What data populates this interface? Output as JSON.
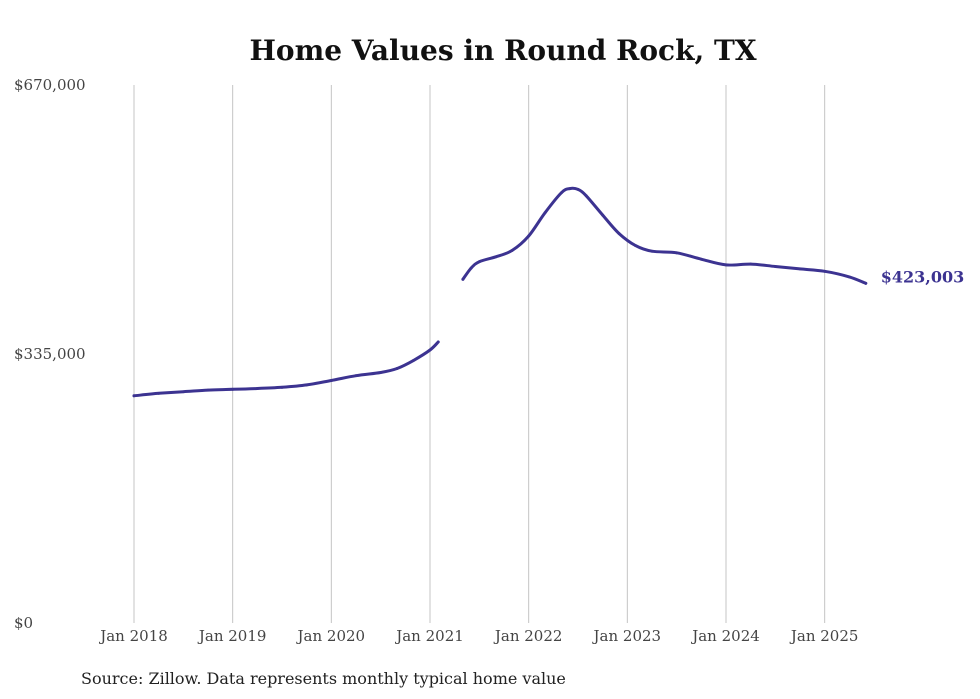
{
  "chart_data": {
    "type": "line",
    "title": "Home Values in Round Rock, TX",
    "source": "Source: Zillow. Data represents monthly typical home value",
    "ylim": [
      0,
      670000
    ],
    "yticks": [
      {
        "value": 0,
        "label": "$0"
      },
      {
        "value": 335000,
        "label": "$335,000"
      },
      {
        "value": 670000,
        "label": "$670,000"
      }
    ],
    "xlim": [
      "2018-01",
      "2025-07"
    ],
    "xticks": [
      {
        "date": "2018-01",
        "label": "Jan 2018"
      },
      {
        "date": "2019-01",
        "label": "Jan 2019"
      },
      {
        "date": "2020-01",
        "label": "Jan 2020"
      },
      {
        "date": "2021-01",
        "label": "Jan 2021"
      },
      {
        "date": "2022-01",
        "label": "Jan 2022"
      },
      {
        "date": "2023-01",
        "label": "Jan 2023"
      },
      {
        "date": "2024-01",
        "label": "Jan 2024"
      },
      {
        "date": "2025-01",
        "label": "Jan 2025"
      }
    ],
    "grid": "vertical",
    "color": "#3c3391",
    "end_label": "$423,003",
    "segments": [
      [
        {
          "x": "2018-01",
          "y": 283000
        },
        {
          "x": "2018-04",
          "y": 286000
        },
        {
          "x": "2018-07",
          "y": 288000
        },
        {
          "x": "2018-10",
          "y": 290000
        },
        {
          "x": "2019-01",
          "y": 291000
        },
        {
          "x": "2019-04",
          "y": 292000
        },
        {
          "x": "2019-07",
          "y": 293500
        },
        {
          "x": "2019-10",
          "y": 296500
        },
        {
          "x": "2020-01",
          "y": 302000
        },
        {
          "x": "2020-04",
          "y": 308000
        },
        {
          "x": "2020-07",
          "y": 312000
        },
        {
          "x": "2020-09",
          "y": 317000
        },
        {
          "x": "2020-11",
          "y": 327000
        },
        {
          "x": "2021-01",
          "y": 340000
        },
        {
          "x": "2021-02",
          "y": 350000
        }
      ],
      [
        {
          "x": "2021-05",
          "y": 428000
        },
        {
          "x": "2021-06",
          "y": 442000
        },
        {
          "x": "2021-07",
          "y": 450000
        },
        {
          "x": "2021-09",
          "y": 456000
        },
        {
          "x": "2021-11",
          "y": 464000
        },
        {
          "x": "2022-01",
          "y": 482000
        },
        {
          "x": "2022-03",
          "y": 511000
        },
        {
          "x": "2022-05",
          "y": 536000
        },
        {
          "x": "2022-06",
          "y": 541000
        },
        {
          "x": "2022-07",
          "y": 540000
        },
        {
          "x": "2022-08",
          "y": 532000
        },
        {
          "x": "2022-10",
          "y": 508000
        },
        {
          "x": "2022-12",
          "y": 485000
        },
        {
          "x": "2023-02",
          "y": 470000
        },
        {
          "x": "2023-04",
          "y": 463000
        },
        {
          "x": "2023-07",
          "y": 461000
        },
        {
          "x": "2023-10",
          "y": 453000
        },
        {
          "x": "2024-01",
          "y": 446000
        },
        {
          "x": "2024-04",
          "y": 447000
        },
        {
          "x": "2024-07",
          "y": 444000
        },
        {
          "x": "2024-10",
          "y": 441000
        },
        {
          "x": "2025-01",
          "y": 438000
        },
        {
          "x": "2025-04",
          "y": 431000
        },
        {
          "x": "2025-06",
          "y": 423003
        }
      ]
    ]
  }
}
